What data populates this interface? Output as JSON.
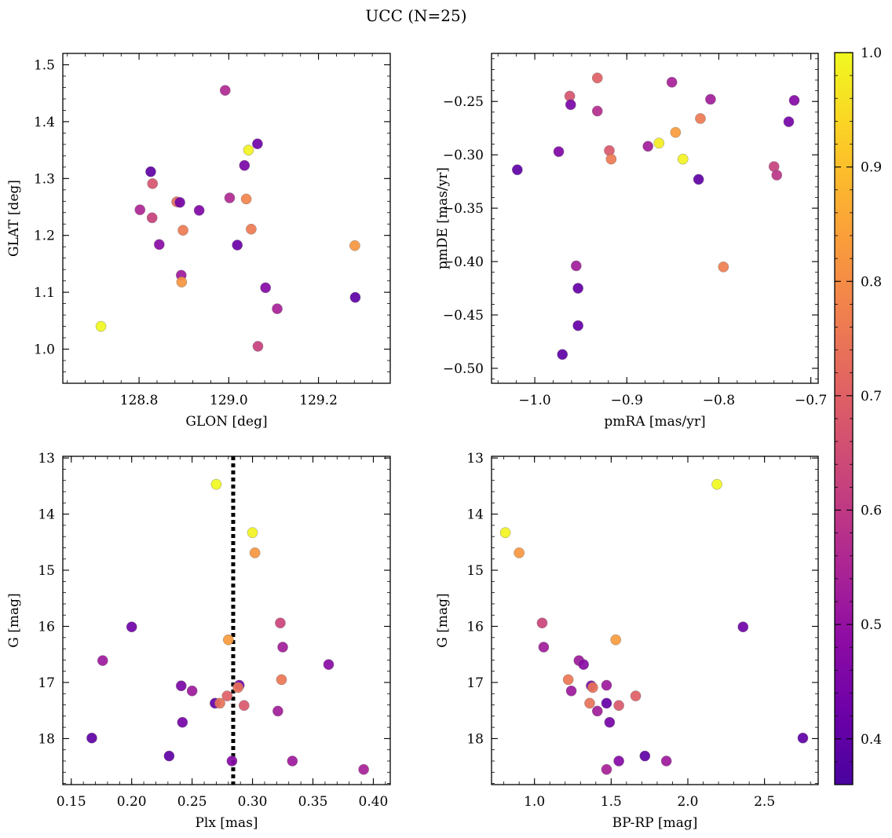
{
  "figure": {
    "title": "UCC (N=25)"
  },
  "colorbar": {
    "colormap": "plasma",
    "vmin": 0.36,
    "vmax": 1.0,
    "ticks": [
      "0.4",
      "0.5",
      "0.6",
      "0.7",
      "0.8",
      "0.9",
      "1.0"
    ]
  },
  "chart_data": [
    {
      "type": "scatter",
      "xlabel": "GLON [deg]",
      "ylabel": "GLAT [deg]",
      "xlim": [
        128.63,
        129.36
      ],
      "ylim": [
        0.94,
        1.52
      ],
      "xticks": [
        "128.8",
        "129.0",
        "129.2"
      ],
      "yticks": [
        "1.0",
        "1.1",
        "1.2",
        "1.3",
        "1.4",
        "1.5"
      ],
      "points": [
        {
          "x": 128.715,
          "y": 1.04,
          "c": 1.0
        },
        {
          "x": 128.802,
          "y": 1.245,
          "c": 0.55
        },
        {
          "x": 128.826,
          "y": 1.312,
          "c": 0.4
        },
        {
          "x": 128.829,
          "y": 1.231,
          "c": 0.62
        },
        {
          "x": 128.83,
          "y": 1.291,
          "c": 0.67
        },
        {
          "x": 128.845,
          "y": 1.184,
          "c": 0.48
        },
        {
          "x": 128.884,
          "y": 1.259,
          "c": 0.73
        },
        {
          "x": 128.891,
          "y": 1.258,
          "c": 0.44
        },
        {
          "x": 128.894,
          "y": 1.13,
          "c": 0.52
        },
        {
          "x": 128.895,
          "y": 1.118,
          "c": 0.82
        },
        {
          "x": 128.898,
          "y": 1.209,
          "c": 0.76
        },
        {
          "x": 128.934,
          "y": 1.244,
          "c": 0.46
        },
        {
          "x": 128.992,
          "y": 1.455,
          "c": 0.56
        },
        {
          "x": 129.002,
          "y": 1.266,
          "c": 0.56
        },
        {
          "x": 129.019,
          "y": 1.183,
          "c": 0.42
        },
        {
          "x": 129.035,
          "y": 1.323,
          "c": 0.45
        },
        {
          "x": 129.039,
          "y": 1.264,
          "c": 0.78
        },
        {
          "x": 129.044,
          "y": 1.35,
          "c": 0.99
        },
        {
          "x": 129.05,
          "y": 1.211,
          "c": 0.76
        },
        {
          "x": 129.064,
          "y": 1.361,
          "c": 0.43
        },
        {
          "x": 129.065,
          "y": 1.005,
          "c": 0.62
        },
        {
          "x": 129.082,
          "y": 1.108,
          "c": 0.47
        },
        {
          "x": 129.108,
          "y": 1.071,
          "c": 0.54
        },
        {
          "x": 129.281,
          "y": 1.182,
          "c": 0.82
        },
        {
          "x": 129.282,
          "y": 1.091,
          "c": 0.4
        }
      ]
    },
    {
      "type": "scatter",
      "xlabel": "pmRA [mas/yr]",
      "ylabel": "pmDE [mas/yr]",
      "xlim": [
        -1.047,
        -0.692
      ],
      "ylim": [
        -0.514,
        -0.205
      ],
      "xticks": [
        "−1.0",
        "−0.9",
        "−0.8",
        "−0.7"
      ],
      "yticks": [
        "−0.50",
        "−0.45",
        "−0.40",
        "−0.35",
        "−0.30",
        "−0.25"
      ],
      "points": [
        {
          "x": -1.019,
          "y": -0.314,
          "c": 0.4
        },
        {
          "x": -0.974,
          "y": -0.297,
          "c": 0.46
        },
        {
          "x": -0.97,
          "y": -0.487,
          "c": 0.4
        },
        {
          "x": -0.962,
          "y": -0.245,
          "c": 0.67
        },
        {
          "x": -0.961,
          "y": -0.253,
          "c": 0.45
        },
        {
          "x": -0.955,
          "y": -0.404,
          "c": 0.53
        },
        {
          "x": -0.953,
          "y": -0.425,
          "c": 0.41
        },
        {
          "x": -0.953,
          "y": -0.46,
          "c": 0.41
        },
        {
          "x": -0.932,
          "y": -0.228,
          "c": 0.7
        },
        {
          "x": -0.932,
          "y": -0.259,
          "c": 0.57
        },
        {
          "x": -0.919,
          "y": -0.296,
          "c": 0.68
        },
        {
          "x": -0.917,
          "y": -0.304,
          "c": 0.76
        },
        {
          "x": -0.877,
          "y": -0.292,
          "c": 0.53
        },
        {
          "x": -0.865,
          "y": -0.289,
          "c": 0.98
        },
        {
          "x": -0.851,
          "y": -0.232,
          "c": 0.54
        },
        {
          "x": -0.847,
          "y": -0.279,
          "c": 0.83
        },
        {
          "x": -0.839,
          "y": -0.304,
          "c": 0.99
        },
        {
          "x": -0.822,
          "y": -0.323,
          "c": 0.4
        },
        {
          "x": -0.82,
          "y": -0.266,
          "c": 0.76
        },
        {
          "x": -0.809,
          "y": -0.248,
          "c": 0.53
        },
        {
          "x": -0.795,
          "y": -0.405,
          "c": 0.77
        },
        {
          "x": -0.74,
          "y": -0.311,
          "c": 0.62
        },
        {
          "x": -0.737,
          "y": -0.319,
          "c": 0.59
        },
        {
          "x": -0.724,
          "y": -0.269,
          "c": 0.44
        },
        {
          "x": -0.718,
          "y": -0.249,
          "c": 0.47
        }
      ]
    },
    {
      "type": "scatter",
      "xlabel": "Plx [mas]",
      "ylabel": "G [mag]",
      "xlim": [
        0.143,
        0.414
      ],
      "ylim": [
        18.82,
        12.97
      ],
      "y_inverted": true,
      "xticks": [
        "0.15",
        "0.20",
        "0.25",
        "0.30",
        "0.35",
        "0.40"
      ],
      "yticks": [
        "13",
        "14",
        "15",
        "16",
        "17",
        "18"
      ],
      "vline": {
        "x": 0.284,
        "style": "dotted",
        "color": "#000000"
      },
      "points": [
        {
          "x": 0.27,
          "y": 13.47,
          "c": 1.0
        },
        {
          "x": 0.3,
          "y": 14.33,
          "c": 0.99
        },
        {
          "x": 0.302,
          "y": 14.69,
          "c": 0.82
        },
        {
          "x": 0.2,
          "y": 16.01,
          "c": 0.43
        },
        {
          "x": 0.323,
          "y": 15.94,
          "c": 0.63
        },
        {
          "x": 0.28,
          "y": 16.24,
          "c": 0.83
        },
        {
          "x": 0.176,
          "y": 16.61,
          "c": 0.52
        },
        {
          "x": 0.325,
          "y": 16.37,
          "c": 0.53
        },
        {
          "x": 0.363,
          "y": 16.68,
          "c": 0.48
        },
        {
          "x": 0.324,
          "y": 16.95,
          "c": 0.75
        },
        {
          "x": 0.241,
          "y": 17.06,
          "c": 0.45
        },
        {
          "x": 0.25,
          "y": 17.15,
          "c": 0.52
        },
        {
          "x": 0.289,
          "y": 17.05,
          "c": 0.44
        },
        {
          "x": 0.288,
          "y": 17.09,
          "c": 0.74
        },
        {
          "x": 0.279,
          "y": 17.24,
          "c": 0.7
        },
        {
          "x": 0.269,
          "y": 17.37,
          "c": 0.41
        },
        {
          "x": 0.273,
          "y": 17.37,
          "c": 0.74
        },
        {
          "x": 0.293,
          "y": 17.41,
          "c": 0.68
        },
        {
          "x": 0.321,
          "y": 17.51,
          "c": 0.53
        },
        {
          "x": 0.242,
          "y": 17.71,
          "c": 0.44
        },
        {
          "x": 0.167,
          "y": 17.99,
          "c": 0.4
        },
        {
          "x": 0.231,
          "y": 18.31,
          "c": 0.4
        },
        {
          "x": 0.283,
          "y": 18.4,
          "c": 0.47
        },
        {
          "x": 0.333,
          "y": 18.4,
          "c": 0.52
        },
        {
          "x": 0.392,
          "y": 18.55,
          "c": 0.54
        }
      ]
    },
    {
      "type": "scatter",
      "xlabel": "BP-RP [mag]",
      "ylabel": "G [mag]",
      "xlim": [
        0.72,
        2.85
      ],
      "ylim": [
        18.82,
        12.97
      ],
      "y_inverted": true,
      "xticks": [
        "1.0",
        "1.5",
        "2.0",
        "2.5"
      ],
      "yticks": [
        "13",
        "14",
        "15",
        "16",
        "17",
        "18"
      ],
      "points": [
        {
          "x": 2.19,
          "y": 13.47,
          "c": 1.0
        },
        {
          "x": 0.81,
          "y": 14.33,
          "c": 0.99
        },
        {
          "x": 0.9,
          "y": 14.69,
          "c": 0.82
        },
        {
          "x": 1.05,
          "y": 15.94,
          "c": 0.63
        },
        {
          "x": 2.36,
          "y": 16.01,
          "c": 0.43
        },
        {
          "x": 1.53,
          "y": 16.24,
          "c": 0.83
        },
        {
          "x": 1.06,
          "y": 16.37,
          "c": 0.53
        },
        {
          "x": 1.29,
          "y": 16.61,
          "c": 0.52
        },
        {
          "x": 1.32,
          "y": 16.68,
          "c": 0.48
        },
        {
          "x": 1.22,
          "y": 16.95,
          "c": 0.75
        },
        {
          "x": 1.37,
          "y": 17.06,
          "c": 0.45
        },
        {
          "x": 1.38,
          "y": 17.09,
          "c": 0.74
        },
        {
          "x": 1.47,
          "y": 17.05,
          "c": 0.52
        },
        {
          "x": 1.24,
          "y": 17.15,
          "c": 0.52
        },
        {
          "x": 1.66,
          "y": 17.24,
          "c": 0.7
        },
        {
          "x": 1.36,
          "y": 17.37,
          "c": 0.74
        },
        {
          "x": 1.47,
          "y": 17.37,
          "c": 0.41
        },
        {
          "x": 1.55,
          "y": 17.41,
          "c": 0.68
        },
        {
          "x": 1.41,
          "y": 17.51,
          "c": 0.53
        },
        {
          "x": 1.49,
          "y": 17.71,
          "c": 0.44
        },
        {
          "x": 2.75,
          "y": 17.99,
          "c": 0.4
        },
        {
          "x": 1.72,
          "y": 18.31,
          "c": 0.4
        },
        {
          "x": 1.55,
          "y": 18.4,
          "c": 0.47
        },
        {
          "x": 1.86,
          "y": 18.4,
          "c": 0.52
        },
        {
          "x": 1.47,
          "y": 18.55,
          "c": 0.54
        }
      ]
    }
  ]
}
